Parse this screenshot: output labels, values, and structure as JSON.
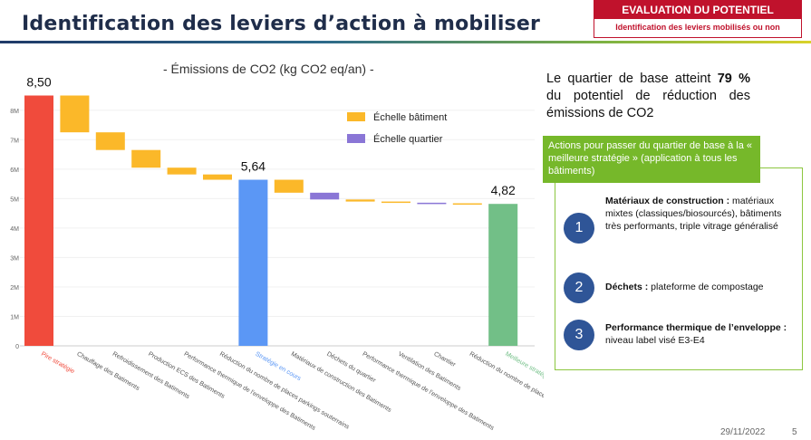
{
  "slide": {
    "title": "Identification des leviers d’action à mobiliser",
    "badge_top": "EVALUATION DU POTENTIEL",
    "badge_sub": "Identification des leviers mobilisés ou non",
    "date": "29/11/2022",
    "page": "5"
  },
  "summary": {
    "prefix": "Le quartier de base atteint ",
    "percent": "79 %",
    "suffix": " du potentiel de réduction des émissions de CO2"
  },
  "actions": {
    "header": "Actions pour passer du quartier de base à la « meilleure stratégie » (application à tous les bâtiments)",
    "items": [
      {
        "num": "1",
        "title": "Matériaux de construction :",
        "text": " matériaux mixtes (classiques/biosourcés), bâtiments très performants, triple vitrage généralisé"
      },
      {
        "num": "2",
        "title": "Déchets :",
        "text": " plateforme de compostage"
      },
      {
        "num": "3",
        "title": "Performance thermique de l’enveloppe :",
        "text": " niveau label visé E3-E4"
      }
    ]
  },
  "colors": {
    "worst": "#f04b3c",
    "building": "#fbb829",
    "district": "#8a76d6",
    "current": "#5b97f5",
    "best": "#72bf87"
  },
  "chart_data": {
    "type": "bar",
    "subtype": "waterfall",
    "title": "- Émissions de CO2 (kg CO2 eq/an) -",
    "ylim": [
      0,
      8500000
    ],
    "y_ticks": [
      0,
      1000000,
      2000000,
      3000000,
      4000000,
      5000000,
      6000000,
      7000000,
      8000000
    ],
    "y_tick_labels": [
      "0",
      "1M",
      "2M",
      "3M",
      "4M",
      "5M",
      "6M",
      "7M",
      "8M"
    ],
    "legend": [
      {
        "label": "Échelle bâtiment",
        "color_key": "building"
      },
      {
        "label": "Échelle quartier",
        "color_key": "district"
      }
    ],
    "legend_position": "top-right",
    "bars": [
      {
        "label": "Pire stratégie",
        "kind": "total",
        "start": 0,
        "end": 8500000,
        "color_key": "worst",
        "data_label": "8,50",
        "label_color": "#f04b3c"
      },
      {
        "label": "Chauffage des Batiments",
        "kind": "delta",
        "start": 8500000,
        "end": 7250000,
        "color_key": "building"
      },
      {
        "label": "Refroidissement des Batiments",
        "kind": "delta",
        "start": 7250000,
        "end": 6650000,
        "color_key": "building"
      },
      {
        "label": "Production ECS des Batiments",
        "kind": "delta",
        "start": 6650000,
        "end": 6050000,
        "color_key": "building"
      },
      {
        "label": "Performance thermique de l'enveloppe des Batiments",
        "kind": "delta",
        "start": 6050000,
        "end": 5820000,
        "color_key": "building"
      },
      {
        "label": "Réduction du nombre de places parkings souterrains",
        "kind": "delta",
        "start": 5820000,
        "end": 5640000,
        "color_key": "building"
      },
      {
        "label": "Stratégie en cours",
        "kind": "total",
        "start": 0,
        "end": 5640000,
        "color_key": "current",
        "data_label": "5,64",
        "label_color": "#5b97f5"
      },
      {
        "label": "Matériaux de construction des Batiments",
        "kind": "delta",
        "start": 5640000,
        "end": 5200000,
        "color_key": "building"
      },
      {
        "label": "Déchets du quartier",
        "kind": "delta",
        "start": 5200000,
        "end": 4970000,
        "color_key": "district"
      },
      {
        "label": "Performance thermique de l'enveloppe des Batiments",
        "kind": "delta",
        "start": 4970000,
        "end": 4900000,
        "color_key": "building"
      },
      {
        "label": "Ventilation des Batiments",
        "kind": "delta",
        "start": 4900000,
        "end": 4860000,
        "color_key": "building"
      },
      {
        "label": "Chantier",
        "kind": "delta",
        "start": 4860000,
        "end": 4840000,
        "color_key": "district"
      },
      {
        "label": "Réduction du nombre de places parkings",
        "kind": "delta",
        "start": 4840000,
        "end": 4820000,
        "color_key": "building"
      },
      {
        "label": "Meilleure stratégie",
        "kind": "total",
        "start": 0,
        "end": 4820000,
        "color_key": "best",
        "data_label": "4,82",
        "label_color": "#72bf87"
      }
    ]
  }
}
